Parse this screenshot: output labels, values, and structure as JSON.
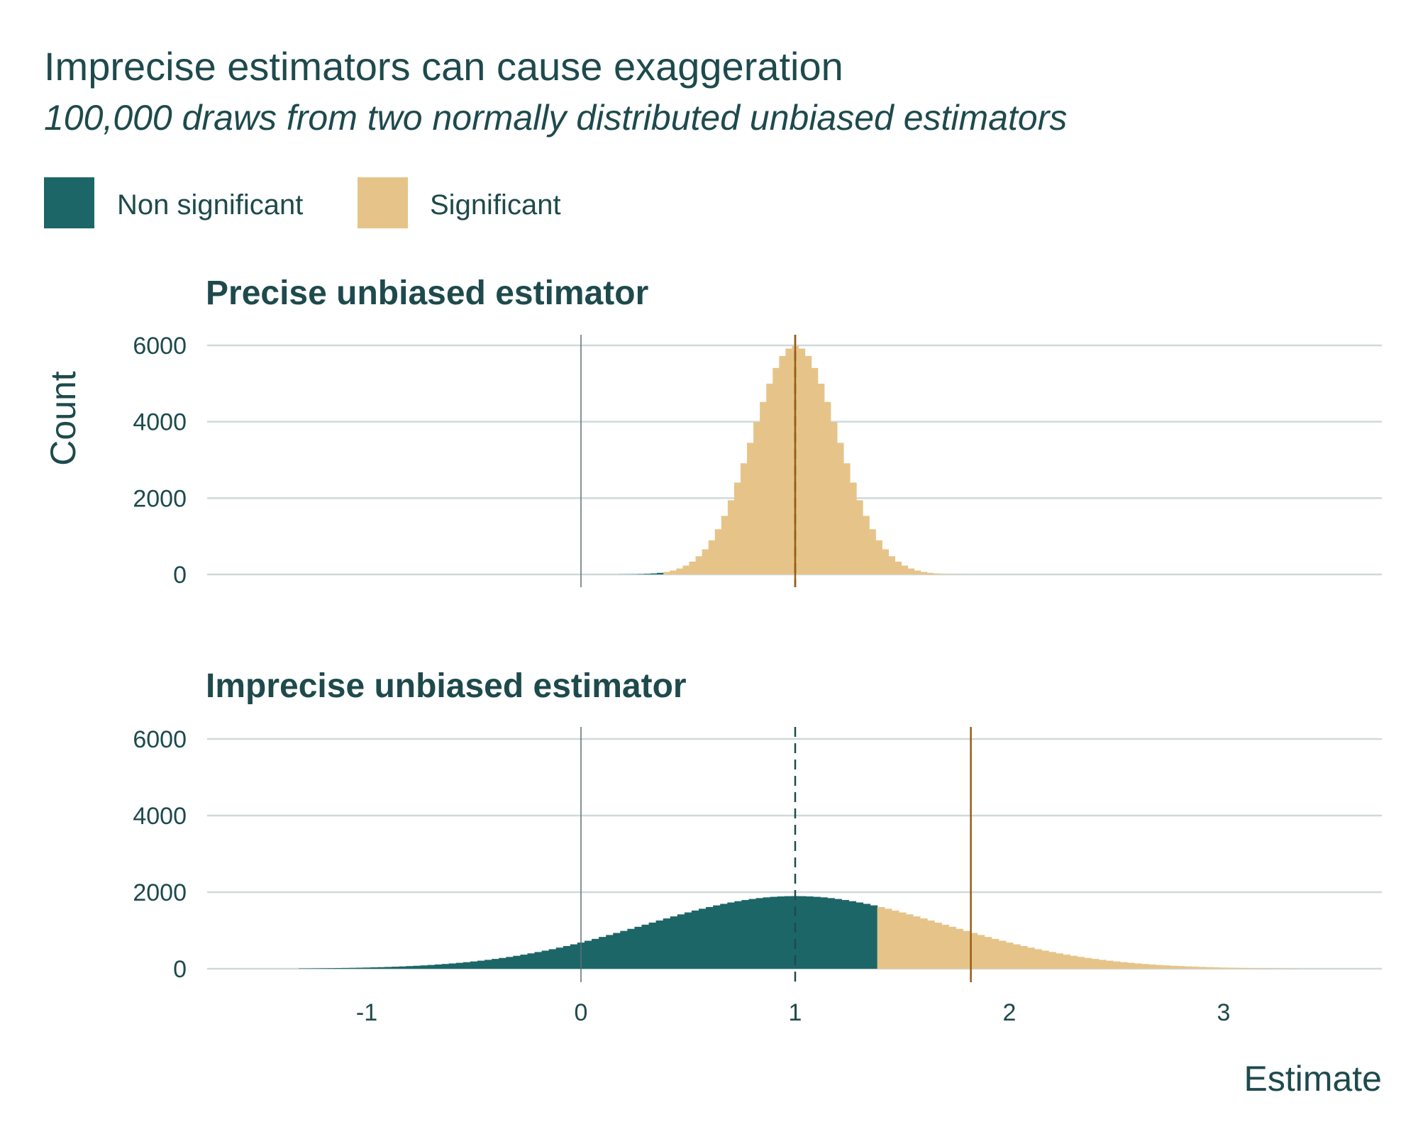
{
  "chart_data": {
    "type": "bar",
    "title": "Imprecise estimators can cause exaggeration",
    "subtitle": "100,000 draws from two normally distributed unbiased estimators",
    "xlabel": "Estimate",
    "ylabel": "Count",
    "xlim": [
      -1.745,
      3.74
    ],
    "ylim": [
      0,
      6300
    ],
    "x_ticks": [
      -1,
      0,
      1,
      2,
      3
    ],
    "x_tick_labels": [
      "-1",
      "0",
      "1",
      "2",
      "3"
    ],
    "y_ticks": [
      0,
      2000,
      4000,
      6000
    ],
    "y_tick_labels": [
      "0",
      "2000",
      "4000",
      "6000"
    ],
    "grid": true,
    "legend": {
      "placement": "top-left",
      "entries": [
        {
          "label": "Non significant",
          "color": "#1d6668"
        },
        {
          "label": "Significant",
          "color": "#e6c489"
        }
      ]
    },
    "colors": {
      "non_significant": "#1d6668",
      "significant": "#e6c489",
      "text": "#1e4a4c",
      "zero_line": "#5f6f70",
      "true_effect_line": "#1e4a4c",
      "mean_significant_line": "#9a5b12"
    },
    "panels": [
      {
        "title": "Precise unbiased estimator",
        "bin_start": 0.175,
        "binwidth": 0.03,
        "sig_threshold": 0.392,
        "true_effect": 1,
        "mean_significant": 1.0,
        "counts": [
          2,
          3,
          5,
          9,
          16,
          26,
          42,
          66,
          103,
          156,
          232,
          336,
          476,
          659,
          894,
          1184,
          1534,
          1943,
          2407,
          2912,
          3448,
          3991,
          4518,
          4998,
          5408,
          5721,
          5917,
          5984,
          5917,
          5721,
          5408,
          4998,
          4518,
          3991,
          3448,
          2912,
          2407,
          1943,
          1534,
          1184,
          894,
          659,
          476,
          336,
          232,
          156,
          103,
          66,
          42,
          26,
          16,
          9,
          5,
          3,
          2
        ]
      },
      {
        "title": "Imprecise unbiased estimator",
        "bin_start": -1.3167,
        "binwidth": 0.03333,
        "sig_threshold": 1.372,
        "true_effect": 1,
        "mean_significant": 1.82,
        "counts": [
          9,
          10,
          12,
          14,
          16,
          18,
          21,
          24,
          28,
          32,
          37,
          42,
          48,
          54,
          61,
          70,
          78,
          88,
          99,
          111,
          125,
          139,
          155,
          172,
          191,
          211,
          233,
          257,
          282,
          309,
          338,
          369,
          402,
          437,
          473,
          511,
          552,
          594,
          638,
          684,
          731,
          780,
          831,
          882,
          935,
          988,
          1042,
          1096,
          1151,
          1206,
          1260,
          1314,
          1367,
          1420,
          1471,
          1520,
          1568,
          1612,
          1655,
          1695,
          1731,
          1765,
          1795,
          1822,
          1845,
          1864,
          1879,
          1889,
          1896,
          1898,
          1896,
          1889,
          1879,
          1864,
          1845,
          1822,
          1795,
          1765,
          1731,
          1695,
          1655,
          1612,
          1568,
          1520,
          1471,
          1420,
          1367,
          1314,
          1260,
          1206,
          1151,
          1096,
          1042,
          988,
          935,
          882,
          831,
          780,
          731,
          684,
          638,
          594,
          552,
          511,
          473,
          437,
          402,
          369,
          338,
          309,
          282,
          257,
          233,
          211,
          191,
          172,
          155,
          139,
          125,
          111,
          99,
          88,
          78,
          70,
          61,
          54,
          48,
          42,
          37,
          32,
          28,
          24,
          21,
          18,
          16,
          14,
          12,
          10,
          9,
          7
        ]
      }
    ]
  }
}
